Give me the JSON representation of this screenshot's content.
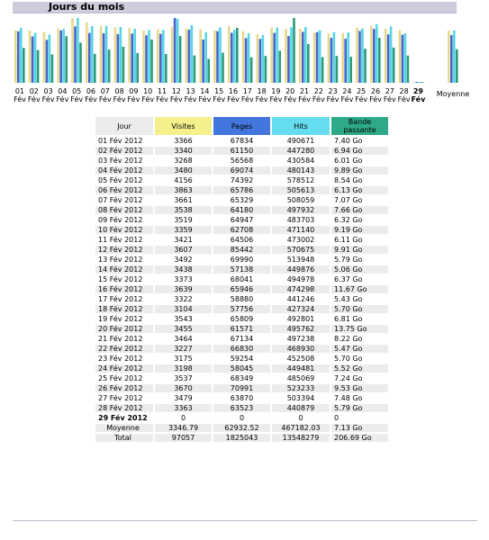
{
  "title": "Jours du mois",
  "average_label": "Moyenne",
  "colors": {
    "visites": "#e6d98e",
    "pages": "#4466cc",
    "hits": "#55d6e6",
    "bandwidth": "#2a9a7a",
    "header_day": "#ececec"
  },
  "headers": {
    "day": "Jour",
    "visites": "Visites",
    "pages": "Pages",
    "hits": "Hits",
    "bandwidth": "Bande passante"
  },
  "current_day_index": 28,
  "days": [
    {
      "label": "01 Fév 2012",
      "d": "01",
      "m": "Fév",
      "visites": "3366",
      "pages": "67834",
      "hits": "490671",
      "bw": "7.40 Go"
    },
    {
      "label": "02 Fév 2012",
      "d": "02",
      "m": "Fév",
      "visites": "3340",
      "pages": "61150",
      "hits": "447280",
      "bw": "6.94 Go"
    },
    {
      "label": "03 Fév 2012",
      "d": "03",
      "m": "Fév",
      "visites": "3268",
      "pages": "56568",
      "hits": "430584",
      "bw": "6.01 Go"
    },
    {
      "label": "04 Fév 2012",
      "d": "04",
      "m": "Fév",
      "visites": "3480",
      "pages": "69074",
      "hits": "480143",
      "bw": "9.89 Go"
    },
    {
      "label": "05 Fév 2012",
      "d": "05",
      "m": "Fév",
      "visites": "4156",
      "pages": "74392",
      "hits": "578512",
      "bw": "8.54 Go"
    },
    {
      "label": "06 Fév 2012",
      "d": "06",
      "m": "Fév",
      "visites": "3863",
      "pages": "65786",
      "hits": "505613",
      "bw": "6.13 Go"
    },
    {
      "label": "07 Fév 2012",
      "d": "07",
      "m": "Fév",
      "visites": "3661",
      "pages": "65329",
      "hits": "508059",
      "bw": "7.07 Go"
    },
    {
      "label": "08 Fév 2012",
      "d": "08",
      "m": "Fév",
      "visites": "3538",
      "pages": "64180",
      "hits": "497932",
      "bw": "7.66 Go"
    },
    {
      "label": "09 Fév 2012",
      "d": "09",
      "m": "Fév",
      "visites": "3519",
      "pages": "64947",
      "hits": "483703",
      "bw": "6.32 Go"
    },
    {
      "label": "10 Fév 2012",
      "d": "10",
      "m": "Fév",
      "visites": "3359",
      "pages": "62708",
      "hits": "471140",
      "bw": "9.19 Go"
    },
    {
      "label": "11 Fév 2012",
      "d": "11",
      "m": "Fév",
      "visites": "3421",
      "pages": "64506",
      "hits": "473002",
      "bw": "6.11 Go"
    },
    {
      "label": "12 Fév 2012",
      "d": "12",
      "m": "Fév",
      "visites": "3607",
      "pages": "85442",
      "hits": "570675",
      "bw": "9.91 Go"
    },
    {
      "label": "13 Fév 2012",
      "d": "13",
      "m": "Fév",
      "visites": "3492",
      "pages": "69990",
      "hits": "513948",
      "bw": "5.79 Go"
    },
    {
      "label": "14 Fév 2012",
      "d": "14",
      "m": "Fév",
      "visites": "3438",
      "pages": "57138",
      "hits": "449876",
      "bw": "5.06 Go"
    },
    {
      "label": "15 Fév 2012",
      "d": "15",
      "m": "Fév",
      "visites": "3373",
      "pages": "68041",
      "hits": "494978",
      "bw": "6.37 Go"
    },
    {
      "label": "16 Fév 2012",
      "d": "16",
      "m": "Fév",
      "visites": "3639",
      "pages": "65946",
      "hits": "474298",
      "bw": "11.67 Go"
    },
    {
      "label": "17 Fév 2012",
      "d": "17",
      "m": "Fév",
      "visites": "3322",
      "pages": "58880",
      "hits": "441246",
      "bw": "5.43 Go"
    },
    {
      "label": "18 Fév 2012",
      "d": "18",
      "m": "Fév",
      "visites": "3104",
      "pages": "57756",
      "hits": "427324",
      "bw": "5.70 Go"
    },
    {
      "label": "19 Fév 2012",
      "d": "19",
      "m": "Fév",
      "visites": "3543",
      "pages": "65809",
      "hits": "492801",
      "bw": "6.81 Go"
    },
    {
      "label": "20 Fév 2012",
      "d": "20",
      "m": "Fév",
      "visites": "3455",
      "pages": "61571",
      "hits": "495762",
      "bw": "13.75 Go"
    },
    {
      "label": "21 Fév 2012",
      "d": "21",
      "m": "Fév",
      "visites": "3464",
      "pages": "67134",
      "hits": "497238",
      "bw": "8.22 Go"
    },
    {
      "label": "22 Fév 2012",
      "d": "22",
      "m": "Fév",
      "visites": "3227",
      "pages": "66830",
      "hits": "468930",
      "bw": "5.47 Go"
    },
    {
      "label": "23 Fév 2012",
      "d": "23",
      "m": "Fév",
      "visites": "3175",
      "pages": "59254",
      "hits": "452508",
      "bw": "5.70 Go"
    },
    {
      "label": "24 Fév 2012",
      "d": "24",
      "m": "Fév",
      "visites": "3198",
      "pages": "58045",
      "hits": "449481",
      "bw": "5.52 Go"
    },
    {
      "label": "25 Fév 2012",
      "d": "25",
      "m": "Fév",
      "visites": "3537",
      "pages": "68349",
      "hits": "485069",
      "bw": "7.24 Go"
    },
    {
      "label": "26 Fév 2012",
      "d": "26",
      "m": "Fév",
      "visites": "3670",
      "pages": "70991",
      "hits": "523233",
      "bw": "9.53 Go"
    },
    {
      "label": "27 Fév 2012",
      "d": "27",
      "m": "Fév",
      "visites": "3479",
      "pages": "63870",
      "hits": "503394",
      "bw": "7.48 Go"
    },
    {
      "label": "28 Fév 2012",
      "d": "28",
      "m": "Fév",
      "visites": "3363",
      "pages": "63523",
      "hits": "440879",
      "bw": "5.79 Go"
    },
    {
      "label": "29 Fév 2012",
      "d": "29",
      "m": "Fév",
      "visites": "0",
      "pages": "0",
      "hits": "0",
      "bw": "0"
    }
  ],
  "summary": [
    {
      "label": "Moyenne",
      "visites": "3346.79",
      "pages": "62932.52",
      "hits": "467182.03",
      "bw": "7.13 Go"
    },
    {
      "label": "Total",
      "visites": "97057",
      "pages": "1825043",
      "hits": "13548279",
      "bw": "206.69 Go"
    }
  ],
  "chart_data": {
    "type": "bar",
    "title": "Jours du mois",
    "categories": [
      "01 Fév",
      "02 Fév",
      "03 Fév",
      "04 Fév",
      "05 Fév",
      "06 Fév",
      "07 Fév",
      "08 Fév",
      "09 Fév",
      "10 Fév",
      "11 Fév",
      "12 Fév",
      "13 Fév",
      "14 Fév",
      "15 Fév",
      "16 Fév",
      "17 Fév",
      "18 Fév",
      "19 Fév",
      "20 Fév",
      "21 Fév",
      "22 Fév",
      "23 Fév",
      "24 Fév",
      "25 Fév",
      "26 Fév",
      "27 Fév",
      "28 Fév",
      "29 Fév"
    ],
    "series": [
      {
        "name": "Visites",
        "color": "#e6d98e",
        "values": [
          3366,
          3340,
          3268,
          3480,
          4156,
          3863,
          3661,
          3538,
          3519,
          3359,
          3421,
          3607,
          3492,
          3438,
          3373,
          3639,
          3322,
          3104,
          3543,
          3455,
          3464,
          3227,
          3175,
          3198,
          3537,
          3670,
          3479,
          3363,
          0
        ],
        "average": 3346.79
      },
      {
        "name": "Pages",
        "color": "#4466cc",
        "values": [
          67834,
          61150,
          56568,
          69074,
          74392,
          65786,
          65329,
          64180,
          64947,
          62708,
          64506,
          85442,
          69990,
          57138,
          68041,
          65946,
          58880,
          57756,
          65809,
          61571,
          67134,
          66830,
          59254,
          58045,
          68349,
          70991,
          63870,
          63523,
          0
        ],
        "average": 62932.52
      },
      {
        "name": "Hits",
        "color": "#55d6e6",
        "values": [
          490671,
          447280,
          430584,
          480143,
          578512,
          505613,
          508059,
          497932,
          483703,
          471140,
          473002,
          570675,
          513948,
          449876,
          494978,
          474298,
          441246,
          427324,
          492801,
          495762,
          497238,
          468930,
          452508,
          449481,
          485069,
          523233,
          503394,
          440879,
          0
        ],
        "average": 467182.03
      },
      {
        "name": "Bande passante (Go)",
        "color": "#2a9a7a",
        "values": [
          7.4,
          6.94,
          6.01,
          9.89,
          8.54,
          6.13,
          7.07,
          7.66,
          6.32,
          9.19,
          6.11,
          9.91,
          5.79,
          5.06,
          6.37,
          11.67,
          5.43,
          5.7,
          6.81,
          13.75,
          8.22,
          5.47,
          5.7,
          5.52,
          7.24,
          9.53,
          7.48,
          5.79,
          0
        ],
        "average": 7.13
      }
    ]
  }
}
